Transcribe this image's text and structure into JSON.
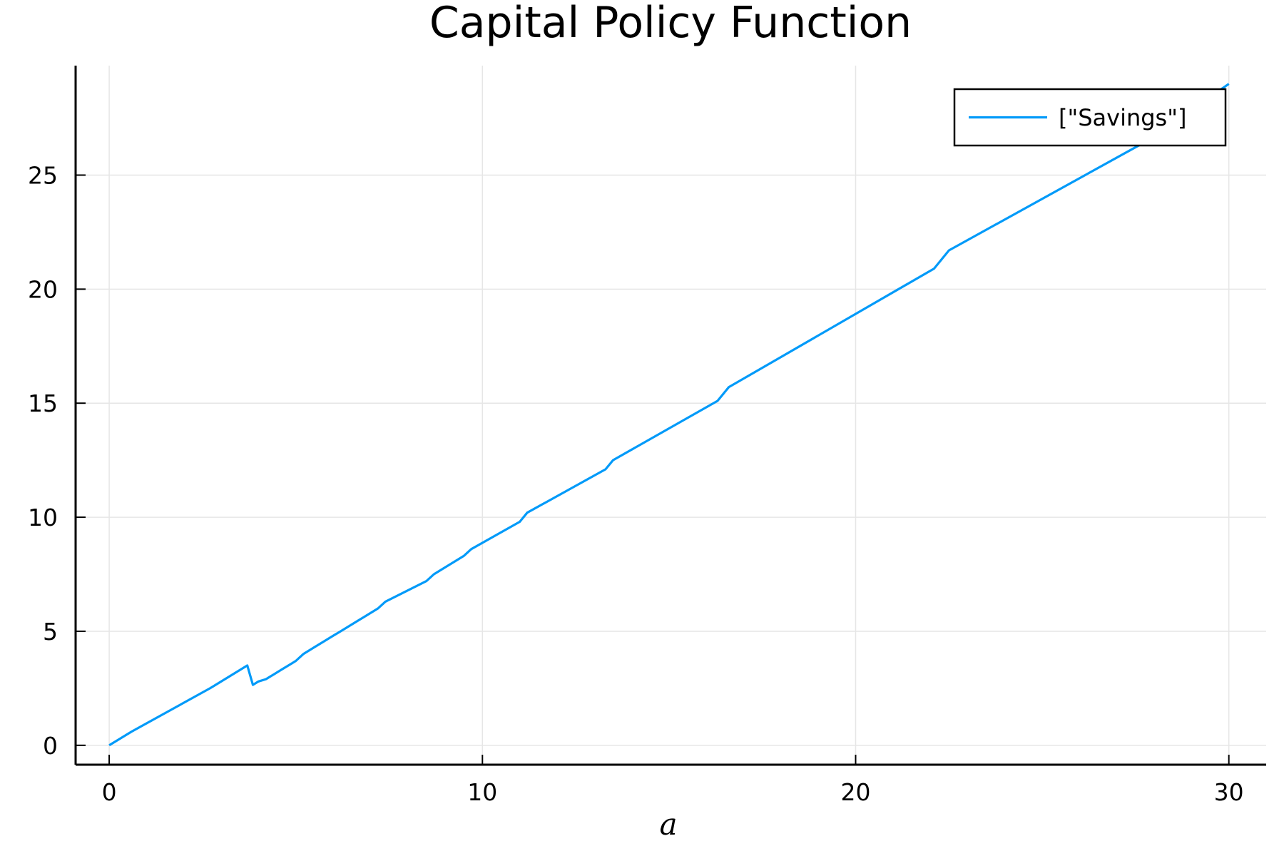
{
  "chart_data": {
    "type": "line",
    "title": "Capital Policy Function",
    "xlabel": "a",
    "ylabel": "",
    "xlim": [
      -0.9,
      31
    ],
    "ylim": [
      -0.85,
      29.8
    ],
    "xticks": [
      0,
      10,
      20,
      30
    ],
    "yticks": [
      0,
      5,
      10,
      15,
      20,
      25
    ],
    "grid": true,
    "legend_position": "top-right",
    "series": [
      {
        "name": "[\"Savings\"]",
        "color": "#009af9",
        "x": [
          0,
          0.2,
          0.4,
          0.6,
          2.7,
          2.8,
          3.7,
          3.85,
          4.0,
          4.2,
          4.4,
          4.6,
          4.9,
          5.0,
          5.2,
          5.5,
          5.7,
          6.0,
          6.2,
          6.7,
          6.9,
          7.2,
          7.4,
          8.5,
          8.7,
          9.5,
          9.7,
          11.0,
          11.2,
          13.3,
          13.5,
          16.3,
          16.6,
          22.1,
          22.5,
          27.7,
          30
        ],
        "y": [
          0,
          0.2,
          0.4,
          0.6,
          2.5,
          2.6,
          3.5,
          2.65,
          2.8,
          2.9,
          3.1,
          3.3,
          3.6,
          3.7,
          4.0,
          4.3,
          4.5,
          4.8,
          5.0,
          5.5,
          5.7,
          6.0,
          6.3,
          7.2,
          7.5,
          8.3,
          8.6,
          9.8,
          10.2,
          12.1,
          12.5,
          15.1,
          15.7,
          20.9,
          21.7,
          26.4,
          29
        ]
      }
    ]
  }
}
